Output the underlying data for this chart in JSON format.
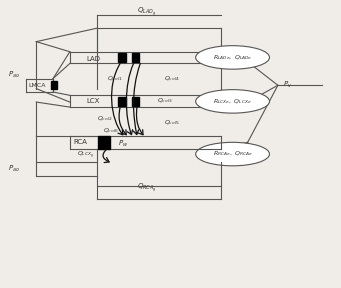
{
  "fig_width": 3.41,
  "fig_height": 2.88,
  "dpi": 100,
  "bg_color": "#f0ede8",
  "line_color": "#555555",
  "arrow_color": "#111111",
  "text_color": "#333333",
  "labels": {
    "Q_LADg": "Q_{LAD_g}",
    "Q_RCAg": "Q_{RCA_g}",
    "P_ao": "P_{ao}",
    "P_ao2": "P_{ao}",
    "LMCA": "LMCA",
    "LAD": "LAD",
    "LCX": "LCX",
    "RCA": "RCA",
    "Q_col1": "Q_{col1}",
    "Q_col2": "Q_{col2}",
    "Q_col3": "Q_{col3}",
    "Q_col4": "Q_{col4}",
    "Q_col5": "Q_{col5}",
    "Q_col6": "Q_{col6}",
    "Q_LCXg": "Q_{LCX_g}",
    "R_LADe_Q_LADe": "R_{LADe}, Q_{LADe}",
    "R_LCXe_Q_LCXe": "R_{LCXe}, Q_{LCXe}",
    "R_RCAe_Q_RCAe": "R_{RCAe}, Q_{RCAe}",
    "P_v": "P_v",
    "P_w": "P_w"
  }
}
